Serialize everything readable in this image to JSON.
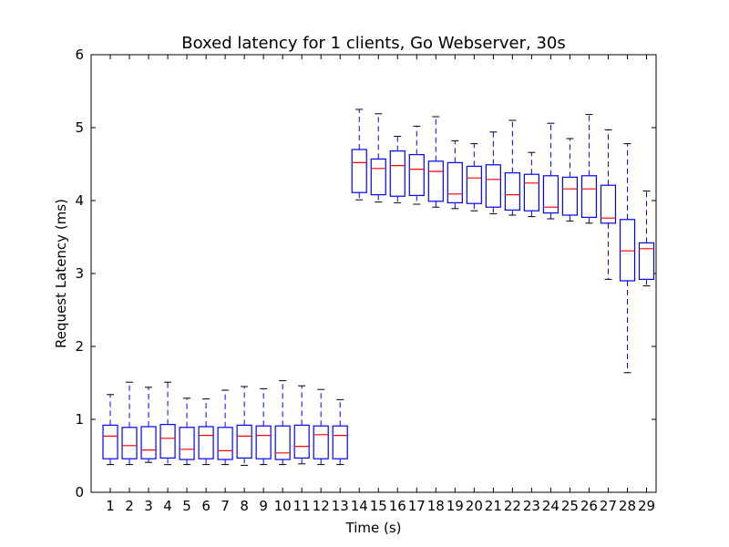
{
  "chart_data": {
    "type": "boxplot",
    "title": "Boxed latency for 1 clients, Go Webserver, 30s",
    "xlabel": "Time (s)",
    "ylabel": "Request Latency (ms)",
    "ylim": [
      0,
      6
    ],
    "yticks": [
      0,
      1,
      2,
      3,
      4,
      5,
      6
    ],
    "grid": false,
    "box_color": "#0000ff",
    "median_color": "#ff0000",
    "boxes": [
      {
        "label": "1",
        "whisker_low": 0.38,
        "q1": 0.46,
        "median": 0.77,
        "q3": 0.92,
        "whisker_high": 1.34
      },
      {
        "label": "2",
        "whisker_low": 0.38,
        "q1": 0.46,
        "median": 0.64,
        "q3": 0.89,
        "whisker_high": 1.51
      },
      {
        "label": "3",
        "whisker_low": 0.41,
        "q1": 0.46,
        "median": 0.58,
        "q3": 0.9,
        "whisker_high": 1.44
      },
      {
        "label": "4",
        "whisker_low": 0.38,
        "q1": 0.47,
        "median": 0.74,
        "q3": 0.93,
        "whisker_high": 1.51
      },
      {
        "label": "5",
        "whisker_low": 0.38,
        "q1": 0.45,
        "median": 0.59,
        "q3": 0.89,
        "whisker_high": 1.29
      },
      {
        "label": "6",
        "whisker_low": 0.38,
        "q1": 0.46,
        "median": 0.78,
        "q3": 0.9,
        "whisker_high": 1.28
      },
      {
        "label": "7",
        "whisker_low": 0.38,
        "q1": 0.45,
        "median": 0.57,
        "q3": 0.89,
        "whisker_high": 1.4
      },
      {
        "label": "8",
        "whisker_low": 0.37,
        "q1": 0.47,
        "median": 0.77,
        "q3": 0.92,
        "whisker_high": 1.45
      },
      {
        "label": "9",
        "whisker_low": 0.38,
        "q1": 0.46,
        "median": 0.78,
        "q3": 0.91,
        "whisker_high": 1.42
      },
      {
        "label": "10",
        "whisker_low": 0.38,
        "q1": 0.45,
        "median": 0.54,
        "q3": 0.91,
        "whisker_high": 1.53
      },
      {
        "label": "11",
        "whisker_low": 0.39,
        "q1": 0.47,
        "median": 0.63,
        "q3": 0.92,
        "whisker_high": 1.46
      },
      {
        "label": "12",
        "whisker_low": 0.38,
        "q1": 0.46,
        "median": 0.79,
        "q3": 0.91,
        "whisker_high": 1.41
      },
      {
        "label": "13",
        "whisker_low": 0.38,
        "q1": 0.46,
        "median": 0.78,
        "q3": 0.91,
        "whisker_high": 1.27
      },
      {
        "label": "14",
        "whisker_low": 4.01,
        "q1": 4.11,
        "median": 4.52,
        "q3": 4.7,
        "whisker_high": 5.25
      },
      {
        "label": "15",
        "whisker_low": 3.98,
        "q1": 4.08,
        "median": 4.44,
        "q3": 4.57,
        "whisker_high": 5.19
      },
      {
        "label": "16",
        "whisker_low": 3.97,
        "q1": 4.06,
        "median": 4.48,
        "q3": 4.68,
        "whisker_high": 4.88
      },
      {
        "label": "17",
        "whisker_low": 3.95,
        "q1": 4.07,
        "median": 4.43,
        "q3": 4.63,
        "whisker_high": 5.02
      },
      {
        "label": "18",
        "whisker_low": 3.91,
        "q1": 3.99,
        "median": 4.4,
        "q3": 4.54,
        "whisker_high": 5.15
      },
      {
        "label": "19",
        "whisker_low": 3.89,
        "q1": 3.97,
        "median": 4.09,
        "q3": 4.52,
        "whisker_high": 4.82
      },
      {
        "label": "20",
        "whisker_low": 3.86,
        "q1": 3.96,
        "median": 4.31,
        "q3": 4.47,
        "whisker_high": 4.78
      },
      {
        "label": "21",
        "whisker_low": 3.82,
        "q1": 3.91,
        "median": 4.29,
        "q3": 4.49,
        "whisker_high": 4.94
      },
      {
        "label": "22",
        "whisker_low": 3.8,
        "q1": 3.87,
        "median": 4.08,
        "q3": 4.38,
        "whisker_high": 5.1
      },
      {
        "label": "23",
        "whisker_low": 3.78,
        "q1": 3.86,
        "median": 4.24,
        "q3": 4.36,
        "whisker_high": 4.66
      },
      {
        "label": "24",
        "whisker_low": 3.75,
        "q1": 3.83,
        "median": 3.91,
        "q3": 4.34,
        "whisker_high": 5.06
      },
      {
        "label": "25",
        "whisker_low": 3.72,
        "q1": 3.8,
        "median": 4.16,
        "q3": 4.32,
        "whisker_high": 4.85
      },
      {
        "label": "26",
        "whisker_low": 3.69,
        "q1": 3.77,
        "median": 4.16,
        "q3": 4.34,
        "whisker_high": 5.18
      },
      {
        "label": "27",
        "whisker_low": 2.92,
        "q1": 3.69,
        "median": 3.76,
        "q3": 4.21,
        "whisker_high": 4.97
      },
      {
        "label": "28",
        "whisker_low": 1.64,
        "q1": 2.9,
        "median": 3.31,
        "q3": 3.74,
        "whisker_high": 4.78
      },
      {
        "label": "29",
        "whisker_low": 2.83,
        "q1": 2.92,
        "median": 3.34,
        "q3": 3.42,
        "whisker_high": 4.13
      }
    ]
  }
}
